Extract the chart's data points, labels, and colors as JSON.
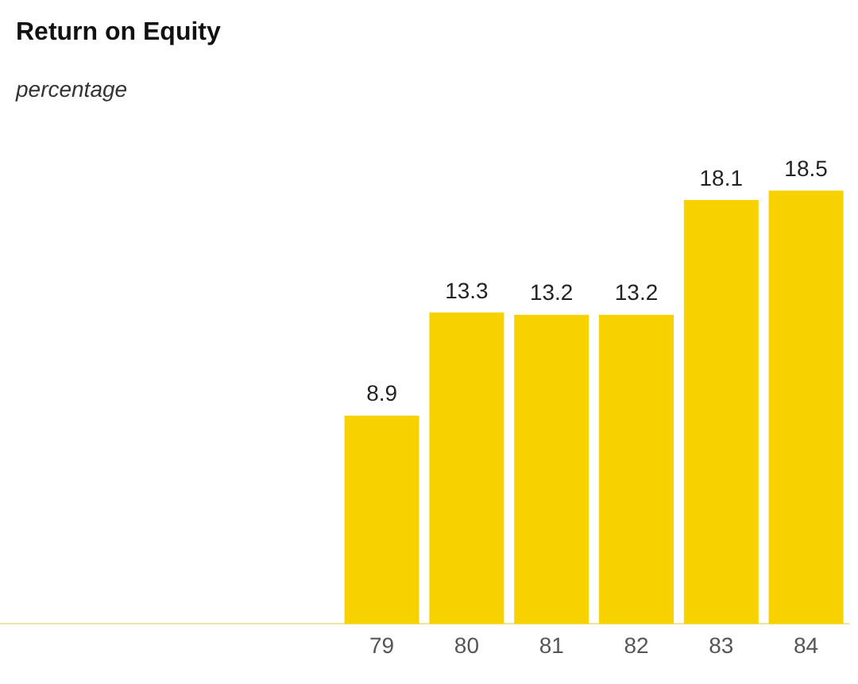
{
  "chart_data": {
    "type": "bar",
    "title": "Return on Equity",
    "subtitle": "percentage",
    "categories": [
      null,
      null,
      null,
      null,
      "79",
      "80",
      "81",
      "82",
      "83",
      "84"
    ],
    "values": [
      null,
      null,
      null,
      null,
      8.9,
      13.3,
      13.2,
      13.2,
      18.1,
      18.5
    ],
    "color": "#f7d100",
    "data_labels": true,
    "grid": false,
    "legend": false,
    "tick_labels": "x"
  }
}
